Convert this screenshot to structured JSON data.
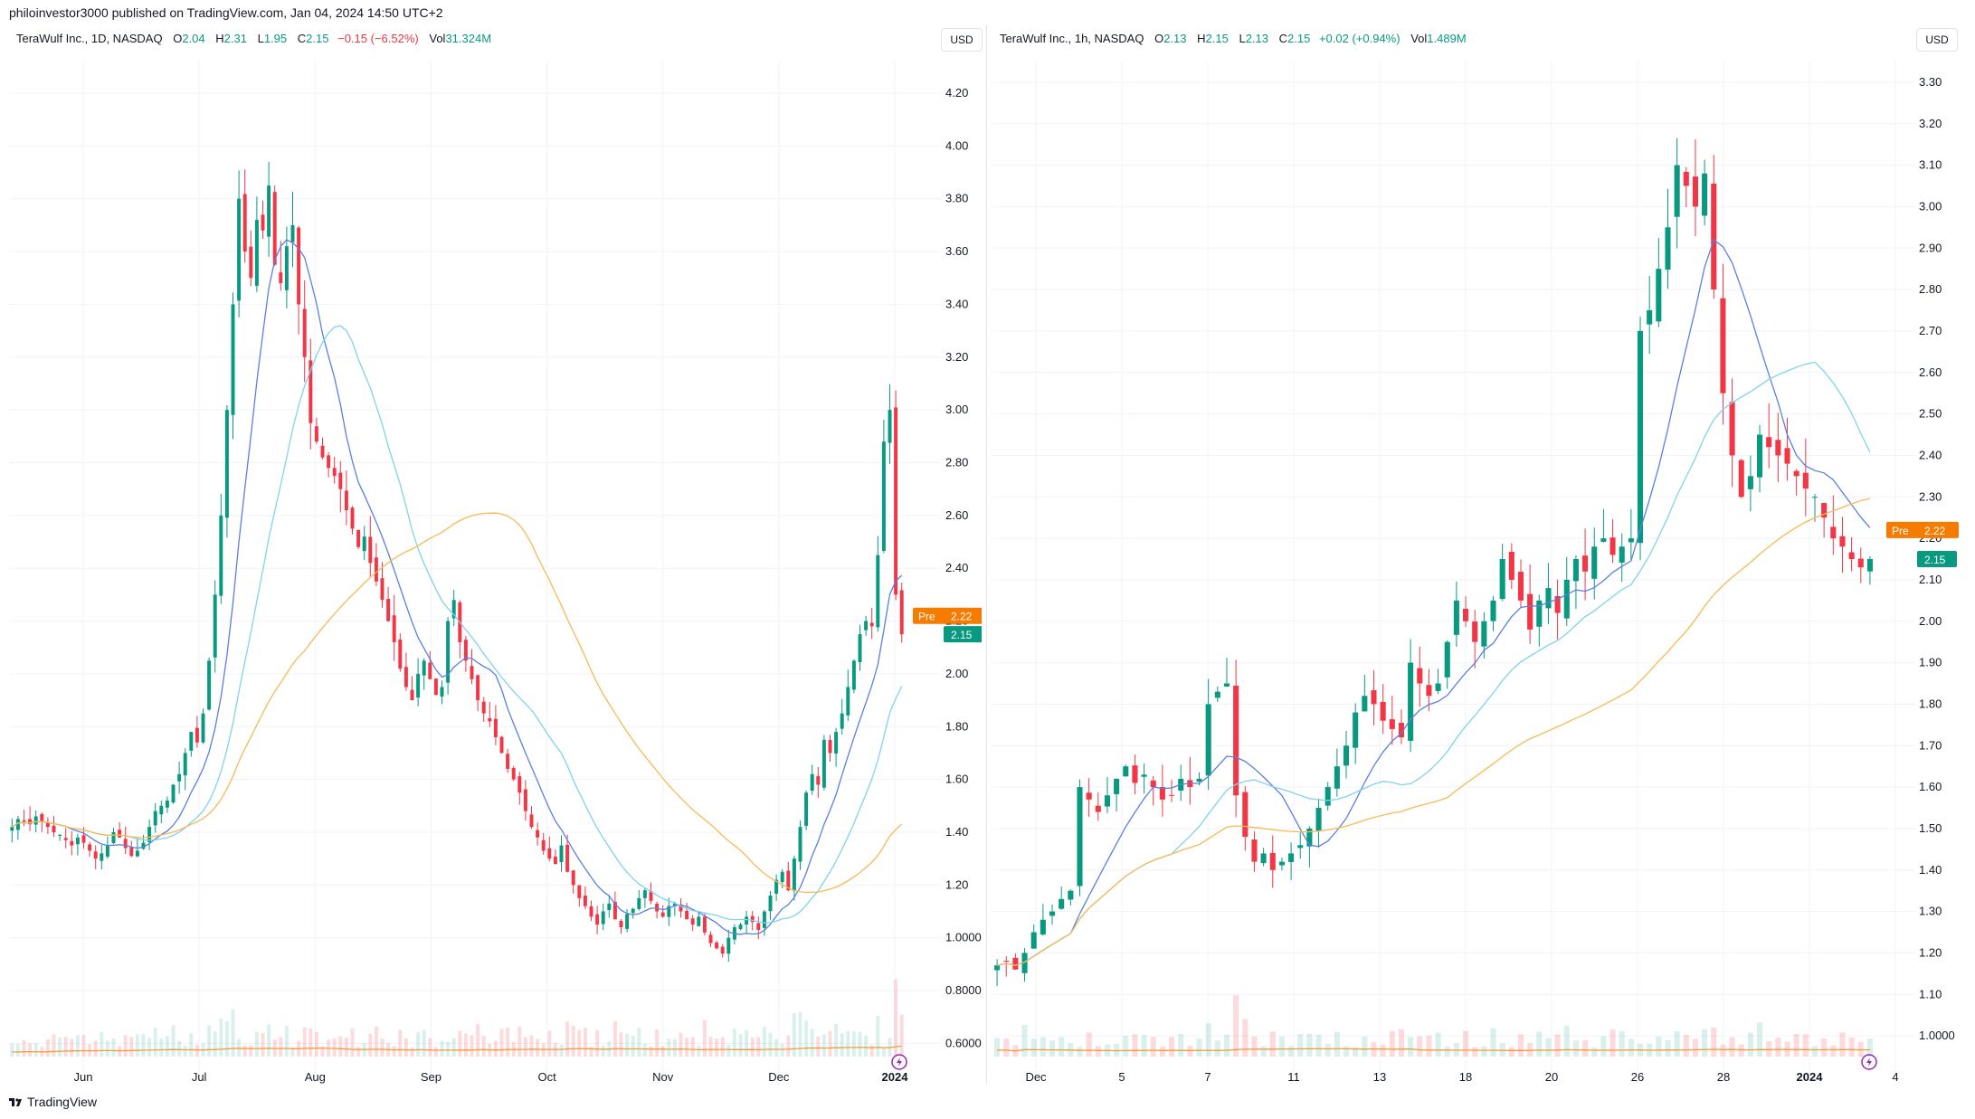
{
  "header": {
    "publish_text": "philoinvestor3000 published on TradingView.com, Jan 04, 2024 14:50 UTC+2"
  },
  "footer": {
    "brand": "TradingView"
  },
  "colors": {
    "up": "#089981",
    "down": "#f23645",
    "ma_fast": "#5b7fe0",
    "ma_mid": "#7fd3ec",
    "ma_slow": "#f7b955",
    "vol_ma": "#f59b35",
    "pre": "#f57c00"
  },
  "charts": [
    {
      "legend": {
        "symbol": "TeraWulf Inc., 1D, NASDAQ",
        "o_label": "O",
        "o": "2.04",
        "h_label": "H",
        "h": "2.31",
        "l_label": "L",
        "l": "1.95",
        "c_label": "C",
        "c": "2.15",
        "change": "−0.15 (−6.52%)",
        "vol_label": "Vol",
        "vol": "31.324M"
      },
      "currency": "USD",
      "price_ticks": [
        "4.20",
        "4.00",
        "3.80",
        "3.60",
        "3.40",
        "3.20",
        "3.00",
        "2.80",
        "2.60",
        "2.40",
        "2.20",
        "2.00",
        "1.80",
        "1.60",
        "1.40",
        "1.20",
        "1.0000",
        "0.8000",
        "0.6000"
      ],
      "time_ticks": [
        "Jun",
        "Jul",
        "Aug",
        "Sep",
        "Oct",
        "Nov",
        "Dec",
        "2024"
      ],
      "pre_label": "Pre",
      "pre_price": "2.22",
      "last_price": "2.15"
    },
    {
      "legend": {
        "symbol": "TeraWulf Inc., 1h, NASDAQ",
        "o_label": "O",
        "o": "2.13",
        "h_label": "H",
        "h": "2.15",
        "l_label": "L",
        "l": "2.13",
        "c_label": "C",
        "c": "2.15",
        "change": "+0.02 (+0.94%)",
        "vol_label": "Vol",
        "vol": "1.489M"
      },
      "currency": "USD",
      "price_ticks": [
        "3.30",
        "3.20",
        "3.10",
        "3.00",
        "2.90",
        "2.80",
        "2.70",
        "2.60",
        "2.50",
        "2.40",
        "2.30",
        "2.20",
        "2.10",
        "2.00",
        "1.90",
        "1.80",
        "1.70",
        "1.60",
        "1.50",
        "1.40",
        "1.30",
        "1.20",
        "1.10",
        "1.0000"
      ],
      "time_ticks": [
        "Dec",
        "5",
        "7",
        "11",
        "13",
        "18",
        "20",
        "26",
        "28",
        "2024",
        "4"
      ],
      "pre_label": "Pre",
      "pre_price": "2.22",
      "last_price": "2.15"
    }
  ],
  "chart_data": [
    {
      "type": "candlestick",
      "title": "TeraWulf Inc., 1D, NASDAQ",
      "ylim": [
        0.55,
        4.32
      ],
      "x_categories": [
        "Jun",
        "Jul",
        "Aug",
        "Sep",
        "Oct",
        "Nov",
        "Dec",
        "2024"
      ],
      "closes": [
        1.42,
        1.45,
        1.44,
        1.43,
        1.46,
        1.44,
        1.42,
        1.4,
        1.39,
        1.37,
        1.35,
        1.38,
        1.36,
        1.33,
        1.3,
        1.32,
        1.35,
        1.4,
        1.38,
        1.34,
        1.31,
        1.33,
        1.36,
        1.42,
        1.48,
        1.5,
        1.52,
        1.58,
        1.62,
        1.7,
        1.78,
        1.74,
        1.85,
        2.05,
        2.3,
        2.6,
        3.0,
        3.4,
        3.8,
        3.6,
        3.5,
        3.72,
        3.68,
        3.85,
        3.55,
        3.48,
        3.62,
        3.7,
        3.4,
        3.2,
        2.95,
        2.88,
        2.82,
        2.78,
        2.75,
        2.7,
        2.62,
        2.55,
        2.48,
        2.52,
        2.42,
        2.35,
        2.28,
        2.2,
        2.12,
        2.02,
        1.95,
        1.9,
        2.0,
        2.05,
        1.98,
        1.92,
        1.95,
        2.2,
        2.28,
        2.12,
        2.05,
        1.98,
        1.9,
        1.85,
        1.82,
        1.76,
        1.7,
        1.64,
        1.6,
        1.55,
        1.48,
        1.42,
        1.38,
        1.33,
        1.3,
        1.28,
        1.35,
        1.25,
        1.2,
        1.15,
        1.12,
        1.08,
        1.05,
        1.1,
        1.13,
        1.07,
        1.04,
        1.09,
        1.11,
        1.15,
        1.18,
        1.14,
        1.1,
        1.08,
        1.12,
        1.13,
        1.1,
        1.07,
        1.05,
        1.08,
        1.02,
        0.98,
        0.96,
        0.94,
        1.0,
        1.04,
        1.05,
        1.08,
        1.06,
        1.03,
        1.1,
        1.16,
        1.22,
        1.25,
        1.18,
        1.3,
        1.42,
        1.55,
        1.62,
        1.58,
        1.75,
        1.7,
        1.78,
        1.85,
        1.95,
        2.05,
        2.15,
        2.2,
        2.18,
        2.45,
        2.88,
        3.0,
        2.3,
        2.15
      ],
      "volume_note": "daily volume bars with moving average"
    },
    {
      "type": "candlestick",
      "title": "TeraWulf Inc., 1h, NASDAQ",
      "ylim": [
        0.95,
        3.35
      ],
      "x_categories": [
        "Dec",
        "5",
        "7",
        "11",
        "13",
        "18",
        "20",
        "26",
        "28",
        "2024",
        "4"
      ],
      "closes": [
        1.17,
        1.18,
        1.16,
        1.2,
        1.25,
        1.28,
        1.3,
        1.33,
        1.35,
        1.6,
        1.57,
        1.54,
        1.58,
        1.62,
        1.65,
        1.61,
        1.63,
        1.6,
        1.57,
        1.58,
        1.62,
        1.6,
        1.62,
        1.8,
        1.83,
        1.85,
        1.58,
        1.48,
        1.42,
        1.44,
        1.4,
        1.42,
        1.44,
        1.46,
        1.5,
        1.55,
        1.6,
        1.65,
        1.7,
        1.78,
        1.82,
        1.8,
        1.76,
        1.74,
        1.72,
        1.9,
        1.85,
        1.82,
        1.85,
        1.95,
        2.05,
        2.0,
        1.95,
        2.0,
        2.05,
        2.15,
        2.1,
        2.05,
        1.98,
        2.05,
        2.08,
        2.02,
        2.1,
        2.15,
        2.12,
        2.18,
        2.2,
        2.16,
        2.18,
        2.2,
        2.7,
        2.75,
        2.85,
        2.95,
        3.1,
        3.05,
        3.0,
        3.08,
        2.8,
        2.55,
        2.4,
        2.3,
        2.35,
        2.45,
        2.42,
        2.4,
        2.38,
        2.35,
        2.32,
        2.3,
        2.25,
        2.2,
        2.18,
        2.15,
        2.13,
        2.15
      ],
      "volume_note": "hourly volume bars with moving average"
    }
  ]
}
